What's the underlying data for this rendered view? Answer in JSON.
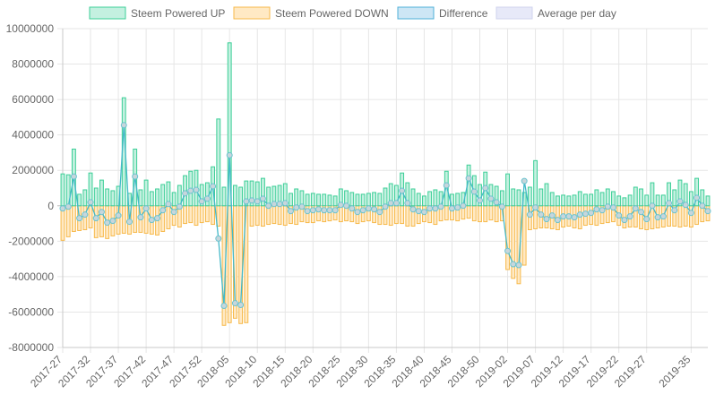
{
  "chart_data": {
    "type": "bar",
    "title": "",
    "xlabel": "",
    "ylabel": "",
    "ylim": [
      -8000000,
      10000000
    ],
    "y_ticks": [
      "10000000",
      "8000000",
      "6000000",
      "4000000",
      "2000000",
      "0",
      "-2000000",
      "-4000000",
      "-6000000",
      "-8000000"
    ],
    "x_tick_labels": [
      "2017-27",
      "2017-32",
      "2017-37",
      "2017-42",
      "2017-47",
      "2017-52",
      "2018-05",
      "2018-10",
      "2018-15",
      "2018-20",
      "2018-25",
      "2018-30",
      "2018-35",
      "2018-40",
      "2018-45",
      "2018-50",
      "2019-02",
      "2019-07",
      "2019-12",
      "2019-17",
      "2019-22",
      "2019-27",
      "2019-35"
    ],
    "x_tick_index": [
      0,
      5,
      10,
      15,
      20,
      25,
      30,
      35,
      40,
      45,
      50,
      55,
      60,
      65,
      70,
      75,
      80,
      85,
      90,
      95,
      100,
      105,
      113
    ],
    "legend": [
      {
        "label": "Steem Powered UP",
        "fill": "#c4f0e0",
        "stroke": "#3ccf97"
      },
      {
        "label": "Steem Powered DOWN",
        "fill": "#ffe9c4",
        "stroke": "#f7b94a"
      },
      {
        "label": "Difference",
        "fill": "#cde6f5",
        "stroke": "#4fb0d8"
      },
      {
        "label": "Average per day",
        "fill": "#e7e9f8",
        "stroke": "#cfd3ee"
      }
    ],
    "colors": {
      "up_fill": "#c4f0e0",
      "up_stroke": "#3ccf97",
      "down_fill": "#ffe9c4",
      "down_stroke": "#f7b94a",
      "diff_stroke": "#44b9c9",
      "diff_point_fill": "#c7d6db",
      "diff_point_stroke": "#6cc4cf",
      "grid": "#e6e6e6",
      "axis": "#c8c8c8"
    },
    "series": [
      {
        "name": "Steem Powered UP",
        "values": [
          1800000,
          1750000,
          3200000,
          650000,
          900000,
          1850000,
          1000000,
          1450000,
          950000,
          850000,
          1100000,
          6100000,
          700000,
          3200000,
          900000,
          1450000,
          800000,
          950000,
          1200000,
          1350000,
          750000,
          1150000,
          1700000,
          1950000,
          2000000,
          1200000,
          1300000,
          2200000,
          4900000,
          1050000,
          9200000,
          1150000,
          1050000,
          1400000,
          1400000,
          1350000,
          1550000,
          1050000,
          1100000,
          1150000,
          1250000,
          700000,
          950000,
          850000,
          650000,
          700000,
          650000,
          650000,
          600000,
          550000,
          950000,
          850000,
          750000,
          650000,
          650000,
          700000,
          750000,
          700000,
          1000000,
          1250000,
          1150000,
          1850000,
          1300000,
          950000,
          700000,
          550000,
          800000,
          900000,
          800000,
          1950000,
          650000,
          700000,
          750000,
          2300000,
          1700000,
          1200000,
          1900000,
          1200000,
          1100000,
          850000,
          1800000,
          950000,
          900000,
          750000,
          1050000,
          2550000,
          950000,
          1250000,
          750000,
          550000,
          600000,
          550000,
          600000,
          800000,
          650000,
          650000,
          900000,
          750000,
          950000,
          800000,
          550000,
          450000,
          600000,
          1050000,
          950000,
          600000,
          1300000,
          600000,
          600000,
          1300000,
          900000,
          1450000,
          1250000,
          800000,
          1550000,
          900000,
          550000
        ],
        "note": ""
      },
      {
        "name": "Steem Powered DOWN",
        "values": [
          -1950000,
          -1750000,
          -1450000,
          -1400000,
          -1350000,
          -1250000,
          -1800000,
          -1750000,
          -1850000,
          -1700000,
          -1600000,
          -1550000,
          -1600000,
          -1500000,
          -1500000,
          -1550000,
          -1600000,
          -1650000,
          -1450000,
          -1300000,
          -1100000,
          -1200000,
          -1000000,
          -950000,
          -1100000,
          -950000,
          -900000,
          -1050000,
          -1150000,
          -6750000,
          -6600000,
          -6350000,
          -6650000,
          -6600000,
          -1150000,
          -1100000,
          -1150000,
          -1050000,
          -1000000,
          -1050000,
          -1100000,
          -1000000,
          -1050000,
          -900000,
          -950000,
          -950000,
          -850000,
          -900000,
          -850000,
          -800000,
          -900000,
          -850000,
          -900000,
          -1000000,
          -900000,
          -850000,
          -950000,
          -1050000,
          -1050000,
          -1100000,
          -1000000,
          -1000000,
          -1150000,
          -1150000,
          -1000000,
          -900000,
          -950000,
          -1050000,
          -850000,
          -800000,
          -800000,
          -850000,
          -750000,
          -700000,
          -850000,
          -900000,
          -900000,
          -800000,
          -900000,
          -850000,
          -3600000,
          -4100000,
          -4400000,
          -3350000,
          -1350000,
          -1300000,
          -1250000,
          -1250000,
          -1300000,
          -1350000,
          -1200000,
          -1150000,
          -1250000,
          -1300000,
          -1100000,
          -1050000,
          -1100000,
          -1000000,
          -950000,
          -900000,
          -1100000,
          -1250000,
          -1200000,
          -1200000,
          -1300000,
          -1350000,
          -1300000,
          -1250000,
          -1200000,
          -1150000,
          -1150000,
          -1200000,
          -1150000,
          -1200000,
          -1050000,
          -900000,
          -850000
        ]
      },
      {
        "name": "Difference",
        "values": [
          -150000,
          -50000,
          1650000,
          -700000,
          -500000,
          200000,
          -700000,
          -350000,
          -950000,
          -850000,
          -550000,
          4550000,
          -900000,
          1650000,
          -650000,
          -150000,
          -800000,
          -700000,
          -250000,
          100000,
          -350000,
          -50000,
          700000,
          850000,
          900000,
          250000,
          400000,
          1100000,
          -1850000,
          -5650000,
          2850000,
          -5500000,
          -5600000,
          250000,
          300000,
          250000,
          400000,
          0,
          100000,
          100000,
          150000,
          -300000,
          -100000,
          -50000,
          -300000,
          -250000,
          -200000,
          -250000,
          -250000,
          -250000,
          50000,
          0,
          -150000,
          -350000,
          -250000,
          -150000,
          -200000,
          -350000,
          -50000,
          150000,
          150000,
          850000,
          150000,
          -200000,
          -300000,
          -350000,
          -150000,
          -150000,
          -50000,
          1150000,
          -150000,
          -100000,
          0,
          1550000,
          800000,
          300000,
          1000000,
          400000,
          200000,
          -50000,
          -2550000,
          -3300000,
          -3350000,
          1400000,
          -500000,
          -100000,
          -500000,
          -750000,
          -550000,
          -800000,
          -600000,
          -600000,
          -650000,
          -500000,
          -450000,
          -400000,
          -200000,
          -250000,
          -50000,
          -100000,
          -550000,
          -800000,
          -600000,
          -150000,
          -350000,
          -750000,
          0,
          -650000,
          -600000,
          150000,
          -250000,
          250000,
          50000,
          -400000,
          450000,
          0,
          -300000
        ]
      }
    ]
  }
}
